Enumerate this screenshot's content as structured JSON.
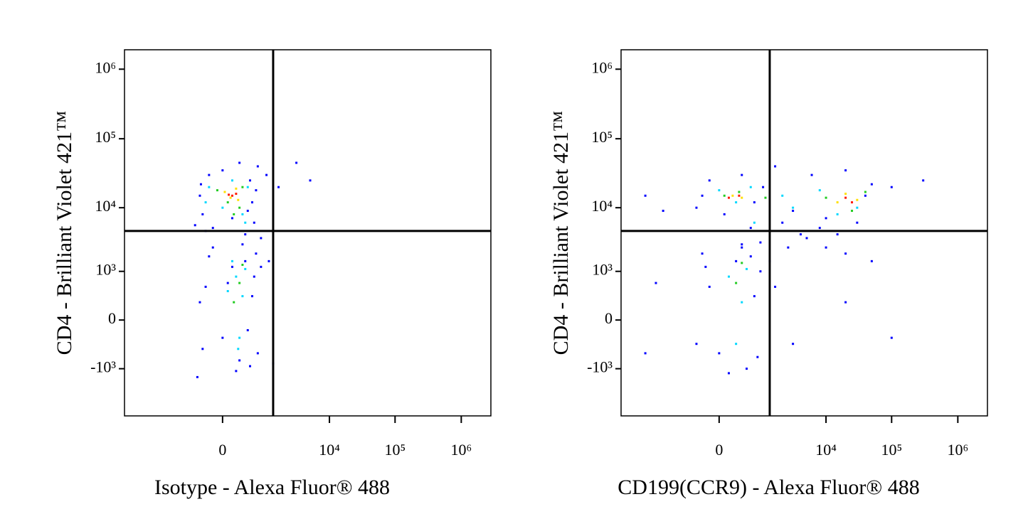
{
  "chart_data": [
    {
      "type": "scatter",
      "scale": "biexponential",
      "x_label": "Isotype - Alexa Fluor® 488",
      "y_label": "CD4 - Brilliant Violet 421™",
      "xlim": [
        -7300,
        2800000
      ],
      "ylim": [
        -5700,
        1900000
      ],
      "xticks": [
        {
          "value": 0,
          "label": "0"
        },
        {
          "value": 10000,
          "label": "10⁴"
        },
        {
          "value": 100000,
          "label": "10⁵"
        },
        {
          "value": 1000000,
          "label": "10⁶"
        }
      ],
      "yticks": [
        {
          "value": -1000,
          "label": "-10³"
        },
        {
          "value": 0,
          "label": "0"
        },
        {
          "value": 1000,
          "label": "10³"
        },
        {
          "value": 10000,
          "label": "10⁴"
        },
        {
          "value": 100000,
          "label": "10⁵"
        },
        {
          "value": 1000000,
          "label": "10⁶"
        }
      ],
      "gates": {
        "x": 1200,
        "y": 4500
      },
      "series": [
        {
          "color": "#0000ff",
          "x": [
            -250,
            -150,
            400,
            500,
            -300,
            600,
            300,
            -100,
            200,
            450,
            -280,
            550,
            0,
            100,
            -200,
            350,
            900,
            3000,
            1500,
            5000,
            700,
            -400,
            -200,
            0,
            300,
            500,
            -300,
            200,
            400,
            -100,
            100,
            450,
            -250,
            550,
            50,
            350,
            -150,
            250,
            600,
            700,
            -350,
            150,
            1000,
            1200
          ],
          "y": [
            8000,
            30000,
            25000,
            6000,
            15000,
            40000,
            4000,
            5000,
            45000,
            12000,
            22000,
            18000,
            35000,
            7000,
            4500,
            9000,
            30000,
            45000,
            20000,
            25000,
            3500,
            5500,
            500,
            -200,
            1500,
            800,
            200,
            -700,
            -900,
            2500,
            1200,
            300,
            -400,
            2000,
            600,
            -100,
            1800,
            2800,
            -500,
            1200,
            -1400,
            -1100,
            1500,
            -800
          ]
        },
        {
          "color": "#00d8ff",
          "x": [
            0,
            250,
            -150,
            350,
            100,
            -200,
            300,
            150,
            250,
            100,
            200,
            300,
            50,
            180
          ],
          "y": [
            10000,
            8000,
            20000,
            20000,
            25000,
            12000,
            6000,
            800,
            300,
            1500,
            -200,
            1100,
            400,
            -400
          ]
        },
        {
          "color": "#22cc22",
          "x": [
            50,
            200,
            -50,
            250,
            120,
            200,
            120,
            250
          ],
          "y": [
            12000,
            10000,
            18000,
            20000,
            8000,
            600,
            200,
            1300
          ]
        },
        {
          "color": "#ffe000",
          "x": [
            80,
            180,
            20,
            150
          ],
          "y": [
            14000,
            13000,
            17000,
            19000
          ]
        },
        {
          "color": "#ff1a00",
          "x": [
            100,
            150,
            60
          ],
          "y": [
            15000,
            16000,
            15500
          ]
        }
      ]
    },
    {
      "type": "scatter",
      "scale": "biexponential",
      "x_label": "CD199(CCR9) - Alexa Fluor® 488",
      "y_label": "CD4 - Brilliant Violet 421™",
      "xlim": [
        -7300,
        2800000
      ],
      "ylim": [
        -5700,
        1900000
      ],
      "xticks": [
        {
          "value": 0,
          "label": "0"
        },
        {
          "value": 10000,
          "label": "10⁴"
        },
        {
          "value": 100000,
          "label": "10⁵"
        },
        {
          "value": 1000000,
          "label": "10⁶"
        }
      ],
      "yticks": [
        {
          "value": -1000,
          "label": "-10³"
        },
        {
          "value": 0,
          "label": "0"
        },
        {
          "value": 1000,
          "label": "10³"
        },
        {
          "value": 10000,
          "label": "10⁴"
        },
        {
          "value": 100000,
          "label": "10⁵"
        },
        {
          "value": 1000000,
          "label": "10⁶"
        }
      ],
      "gates": {
        "x": 1200,
        "y": 4500
      },
      "series": [
        {
          "color": "#0000ff",
          "x": [
            -200,
            -100,
            50,
            300,
            600,
            900,
            3000,
            6000,
            10000,
            20000,
            40000,
            50000,
            -300,
            1500,
            8000,
            30000,
            15000,
            2000,
            100000,
            300000,
            -1500,
            -3000,
            500,
            4000,
            800,
            2500,
            5000,
            300,
            1200,
            10000,
            20000,
            -100,
            0,
            200,
            400,
            -200,
            600,
            100,
            500,
            -300,
            700,
            300,
            800,
            -150,
            1500,
            3000,
            50000,
            100000,
            -2000,
            -3000,
            20000
          ],
          "y": [
            15000,
            25000,
            8000,
            30000,
            12000,
            20000,
            9000,
            30000,
            7000,
            35000,
            15000,
            22000,
            10000,
            40000,
            5000,
            6000,
            4000,
            6000,
            20000,
            25000,
            9000,
            15000,
            5000,
            4000,
            3000,
            2500,
            3500,
            2500,
            1500,
            2500,
            2000,
            500,
            -500,
            1500,
            -1000,
            2000,
            300,
            -1200,
            1800,
            -300,
            -600,
            2800,
            1000,
            1200,
            500,
            -300,
            1500,
            -200,
            600,
            -500,
            200
          ]
        },
        {
          "color": "#00d8ff",
          "x": [
            0,
            200,
            500,
            2000,
            8000,
            30000,
            15000,
            3000,
            100,
            300,
            200,
            400,
            600
          ],
          "y": [
            18000,
            12000,
            20000,
            15000,
            18000,
            10000,
            8000,
            10000,
            800,
            200,
            -300,
            1100,
            6000
          ]
        },
        {
          "color": "#22cc22",
          "x": [
            50,
            250,
            1000,
            10000,
            40000,
            25000,
            200,
            300
          ],
          "y": [
            15000,
            17000,
            14000,
            14000,
            17000,
            9000,
            600,
            1400
          ]
        },
        {
          "color": "#ffe000",
          "x": [
            150,
            300,
            15000,
            30000,
            20000
          ],
          "y": [
            15000,
            14000,
            12000,
            13000,
            16000
          ]
        },
        {
          "color": "#ff1a00",
          "x": [
            250,
            100,
            20000,
            25000
          ],
          "y": [
            15000,
            14000,
            14000,
            12000
          ]
        }
      ]
    }
  ]
}
